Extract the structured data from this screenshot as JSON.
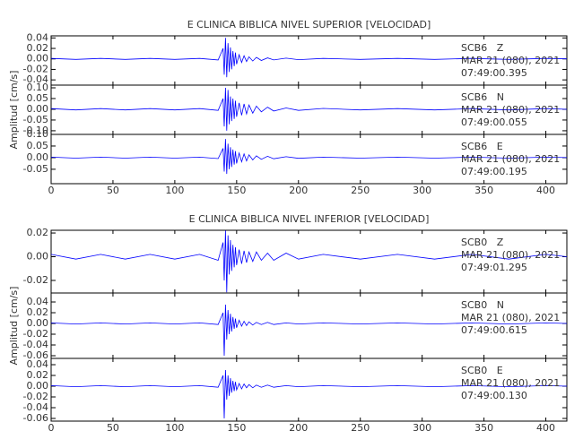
{
  "chart_data": [
    {
      "type": "line",
      "title": "E CLINICA BIBLICA NIVEL SUPERIOR [VELOCIDAD]",
      "ylabel": "Amplitud [cm/s]",
      "x": [
        0,
        20,
        40,
        60,
        80,
        100,
        120,
        135,
        139,
        140,
        141,
        142,
        143,
        144,
        145,
        146,
        147,
        148,
        149,
        150,
        152,
        154,
        156,
        158,
        160,
        163,
        166,
        170,
        175,
        180,
        190,
        200,
        220,
        250,
        280,
        310,
        340,
        370,
        400,
        417
      ],
      "xlim": [
        0,
        417
      ],
      "xticks": [
        0,
        50,
        100,
        150,
        200,
        250,
        300,
        350,
        400
      ],
      "panels": [
        {
          "ylim": [
            -0.05,
            0.044
          ],
          "yticks": [
            0.04,
            0.02,
            {
              "value": 0,
              "label": "0.00"
            },
            -0.02,
            -0.04
          ],
          "annotation": [
            "SCB6   Z",
            "MAR 21 (080), 2021",
            "07:49:00.395"
          ],
          "series": [
            {
              "color": "#0000ff",
              "values": [
                0.001,
                -0.001,
                0.001,
                -0.001,
                0.001,
                -0.001,
                0.001,
                -0.002,
                0.02,
                -0.03,
                0.04,
                -0.035,
                0.03,
                -0.025,
                0.022,
                -0.02,
                0.015,
                -0.014,
                0.012,
                -0.01,
                0.008,
                -0.007,
                0.006,
                -0.005,
                0.004,
                -0.004,
                0.003,
                -0.003,
                0.002,
                -0.002,
                0.0015,
                -0.0015,
                0.001,
                -0.001,
                0.001,
                -0.001,
                0.001,
                -0.001,
                0.001,
                0
              ]
            }
          ]
        },
        {
          "ylim": [
            -0.117,
            0.1125
          ],
          "yticks": [
            {
              "value": 0.1,
              "label": "0.10"
            },
            0.05,
            {
              "value": 0,
              "label": "0.00"
            },
            -0.05,
            {
              "value": -0.1,
              "label": "-0.10"
            }
          ],
          "annotation": [
            "SCB6   N",
            "MAR 21 (080), 2021",
            "07:49:00.055"
          ],
          "series": [
            {
              "color": "#0000ff",
              "values": [
                0.003,
                -0.003,
                0.003,
                -0.003,
                0.003,
                -0.003,
                0.003,
                -0.005,
                0.05,
                -0.08,
                0.1,
                -0.1,
                0.09,
                -0.07,
                0.06,
                -0.055,
                0.05,
                -0.045,
                0.04,
                -0.035,
                0.03,
                -0.028,
                0.025,
                -0.022,
                0.02,
                -0.018,
                0.015,
                -0.012,
                0.01,
                -0.008,
                0.006,
                -0.005,
                0.004,
                -0.003,
                0.003,
                -0.003,
                0.003,
                -0.003,
                0.003,
                0
              ]
            }
          ]
        },
        {
          "ylim": [
            -0.112,
            0.1
          ],
          "yticks": [
            {
              "value": 0.1,
              "label": "0.10"
            },
            0.05,
            {
              "value": 0,
              "label": "0.00"
            },
            -0.05
          ],
          "annotation": [
            "SCB6   E",
            "MAR 21 (080), 2021",
            "07:49:00.195"
          ],
          "series": [
            {
              "color": "#0000ff",
              "values": [
                0.002,
                -0.002,
                0.002,
                -0.002,
                0.002,
                -0.002,
                0.002,
                -0.004,
                0.04,
                -0.06,
                0.08,
                -0.07,
                0.06,
                -0.05,
                0.045,
                -0.04,
                0.035,
                -0.03,
                0.028,
                -0.025,
                0.02,
                -0.018,
                0.016,
                -0.014,
                0.012,
                -0.01,
                0.008,
                -0.007,
                0.006,
                -0.005,
                0.004,
                -0.003,
                0.002,
                -0.002,
                0.002,
                -0.002,
                0.002,
                -0.002,
                0.002,
                0
              ]
            }
          ]
        }
      ]
    },
    {
      "type": "line",
      "title": "E CLINICA BIBLICA NIVEL INFERIOR [VELOCIDAD]",
      "ylabel": "Amplitud [cm/s]",
      "x": [
        0,
        20,
        40,
        60,
        80,
        100,
        120,
        135,
        139,
        140,
        141,
        142,
        143,
        144,
        145,
        146,
        147,
        148,
        149,
        150,
        152,
        154,
        156,
        158,
        160,
        163,
        166,
        170,
        175,
        180,
        190,
        200,
        220,
        250,
        280,
        310,
        340,
        370,
        400,
        417
      ],
      "xlim": [
        0,
        417
      ],
      "xticks": [
        0,
        50,
        100,
        150,
        200,
        250,
        300,
        350,
        400
      ],
      "panels": [
        {
          "ylim": [
            -0.0306,
            0.0223
          ],
          "yticks": [
            0.02,
            {
              "value": 0,
              "label": "0.00"
            },
            -0.02
          ],
          "annotation": [
            "SCB0   Z",
            "MAR 21 (080), 2021",
            "07:49:01.295"
          ],
          "series": [
            {
              "color": "#0000ff",
              "values": [
                0.002,
                -0.002,
                0.002,
                -0.002,
                0.002,
                -0.002,
                0.002,
                -0.003,
                0.012,
                -0.02,
                0.022,
                -0.03,
                0.018,
                -0.015,
                0.014,
                -0.012,
                0.01,
                -0.009,
                0.008,
                -0.007,
                0.006,
                -0.006,
                0.005,
                -0.005,
                0.004,
                -0.004,
                0.004,
                -0.003,
                0.003,
                -0.003,
                0.003,
                -0.002,
                0.002,
                -0.002,
                0.002,
                -0.002,
                0.002,
                -0.002,
                0.002,
                0
              ]
            }
          ]
        },
        {
          "ylim": [
            -0.065,
            0.0567
          ],
          "yticks": [
            0.04,
            0.02,
            {
              "value": 0,
              "label": "0.00"
            },
            -0.02,
            -0.04,
            -0.06
          ],
          "annotation": [
            "SCB0   N",
            "MAR 21 (080), 2021",
            "07:49:00.615"
          ],
          "series": [
            {
              "color": "#0000ff",
              "values": [
                0.001,
                -0.001,
                0.001,
                -0.001,
                0.001,
                -0.001,
                0.001,
                -0.002,
                0.02,
                -0.06,
                0.035,
                -0.03,
                0.025,
                -0.02,
                0.018,
                -0.015,
                0.012,
                -0.01,
                0.009,
                -0.008,
                0.006,
                -0.005,
                0.004,
                -0.004,
                0.003,
                -0.003,
                0.002,
                -0.002,
                0.002,
                -0.002,
                0.001,
                -0.001,
                0.001,
                -0.001,
                0.001,
                -0.001,
                0.001,
                -0.001,
                0.001,
                0
              ]
            }
          ]
        },
        {
          "ylim": [
            -0.065,
            0.0517
          ],
          "yticks": [
            0.04,
            0.02,
            {
              "value": 0,
              "label": "0.00"
            },
            -0.02,
            -0.04,
            -0.06
          ],
          "annotation": [
            "SCB0   E",
            "MAR 21 (080), 2021",
            "07:49:00.130"
          ],
          "series": [
            {
              "color": "#0000ff",
              "values": [
                0.001,
                -0.001,
                0.001,
                -0.001,
                0.001,
                -0.001,
                0.001,
                -0.002,
                0.02,
                -0.06,
                0.03,
                -0.025,
                0.02,
                -0.018,
                0.015,
                -0.012,
                0.01,
                -0.009,
                0.008,
                -0.007,
                0.005,
                -0.005,
                0.004,
                -0.003,
                0.003,
                -0.003,
                0.002,
                -0.002,
                0.002,
                -0.002,
                0.001,
                -0.001,
                0.001,
                -0.001,
                0.001,
                -0.001,
                0.001,
                -0.001,
                0.001,
                0
              ]
            }
          ]
        }
      ]
    }
  ]
}
